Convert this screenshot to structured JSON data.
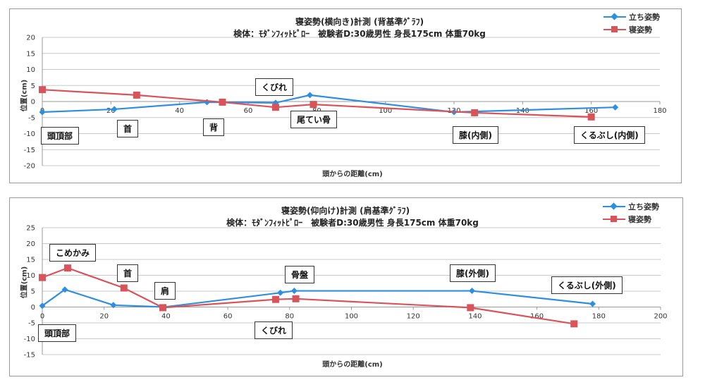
{
  "chart_data": [
    {
      "type": "line",
      "title": "寝姿勢(横向き)計測 (背基準ｸﾞﾗﾌ)",
      "subtitle": "検体：ﾓﾀﾞﾝﾌｨｯﾄﾋﾟﾛｰ　被験者D:30歳男性 身長175cm 体重70kg",
      "xlabel": "頭からの距離(cm)",
      "ylabel": "位置(cm)",
      "xlim": [
        0,
        180
      ],
      "ylim": [
        -20,
        20
      ],
      "xticks": [
        0,
        20,
        40,
        60,
        80,
        100,
        120,
        140,
        160,
        180
      ],
      "yticks": [
        20,
        15,
        10,
        5,
        0,
        -5,
        -10,
        -15,
        -20
      ],
      "grid": true,
      "legend_position": "top-right",
      "series": [
        {
          "name": "立ち姿勢",
          "color": "#2e8fde",
          "marker": "diamond",
          "x": [
            0,
            21,
            48,
            68,
            78,
            120,
            167
          ],
          "y": [
            -3.3,
            -2.4,
            -0.2,
            -0.4,
            2.0,
            -3.3,
            -1.8
          ]
        },
        {
          "name": "寝姿勢",
          "color": "#d9545a",
          "marker": "square",
          "x": [
            0,
            27.5,
            52.5,
            68,
            79,
            126,
            160
          ],
          "y": [
            3.7,
            2.0,
            -0.2,
            -1.8,
            -0.9,
            -3.5,
            -4.8
          ]
        }
      ],
      "annotations": [
        {
          "label": "頭頂部",
          "x": 0,
          "y": -10
        },
        {
          "label": "首",
          "x": 26,
          "y": -8
        },
        {
          "label": "背",
          "x": 50,
          "y": -8
        },
        {
          "label": "くびれ",
          "x": 67,
          "y": 5
        },
        {
          "label": "尾てい骨",
          "x": 82,
          "y": -6
        },
        {
          "label": "膝(内側)",
          "x": 126,
          "y": -10
        },
        {
          "label": "くるぶし(内側)",
          "x": 164,
          "y": -10
        }
      ]
    },
    {
      "type": "line",
      "title": "寝姿勢(仰向け)計測 (肩基準ｸﾞﾗﾌ)",
      "subtitle": "検体：ﾓﾀﾞﾝﾌｨｯﾄﾋﾟﾛｰ　被験者D:30歳男性 身長175cm 体重70kg",
      "xlabel": "頭からの距離(cm)",
      "ylabel": "位置(cm)",
      "xlim": [
        0,
        200
      ],
      "ylim": [
        -15,
        25
      ],
      "xticks": [
        0,
        20,
        40,
        60,
        80,
        100,
        120,
        140,
        160,
        180,
        200
      ],
      "yticks": [
        25,
        20,
        15,
        10,
        5,
        0,
        -5,
        -10,
        -15
      ],
      "grid": true,
      "legend_position": "top-right",
      "series": [
        {
          "name": "立ち姿勢",
          "color": "#2e8fde",
          "marker": "diamond",
          "x": [
            0,
            7.3,
            23,
            39.5,
            77,
            81.5,
            139,
            178
          ],
          "y": [
            0.4,
            5.5,
            0.6,
            0.0,
            4.5,
            5.1,
            5.1,
            1.0
          ]
        },
        {
          "name": "寝姿勢",
          "color": "#d9545a",
          "marker": "square",
          "x": [
            0,
            8.2,
            26.4,
            39,
            75.5,
            82,
            138.5,
            172
          ],
          "y": [
            9.3,
            12.3,
            6.0,
            -0.2,
            2.4,
            2.6,
            -0.2,
            -5.3
          ]
        }
      ],
      "annotations": [
        {
          "label": "こめかみ",
          "x": 9,
          "y": 17
        },
        {
          "label": "首",
          "x": 27,
          "y": 11
        },
        {
          "label": "肩",
          "x": 40,
          "y": 5
        },
        {
          "label": "頭頂部",
          "x": 0,
          "y": -8
        },
        {
          "label": "骨盤",
          "x": 82,
          "y": 10
        },
        {
          "label": "くびれ",
          "x": 77,
          "y": -7
        },
        {
          "label": "膝(外側)",
          "x": 138,
          "y": 10
        },
        {
          "label": "くるぶし(外側)",
          "x": 179,
          "y": 7
        }
      ]
    }
  ],
  "charts": {
    "top": {
      "title": "寝姿勢(横向き)計測 (背基準ｸﾞﾗﾌ)",
      "subtitle": "検体：ﾓﾀﾞﾝﾌｨｯﾄﾋﾟﾛｰ　被験者D:30歳男性 身長175cm 体重70kg",
      "xlabel": "頭からの距離(cm)",
      "ylabel": "位置(cm)",
      "legend": [
        "立ち姿勢",
        "寝姿勢"
      ],
      "annotations": [
        "頭頂部",
        "首",
        "背",
        "くびれ",
        "尾てい骨",
        "膝(内側)",
        "くるぶし(内側)"
      ]
    },
    "bottom": {
      "title": "寝姿勢(仰向け)計測 (肩基準ｸﾞﾗﾌ)",
      "subtitle": "検体：ﾓﾀﾞﾝﾌｨｯﾄﾋﾟﾛｰ　被験者D:30歳男性 身長175cm 体重70kg",
      "xlabel": "頭からの距離(cm)",
      "ylabel": "位置(cm)",
      "legend": [
        "立ち姿勢",
        "寝姿勢"
      ],
      "annotations": [
        "こめかみ",
        "首",
        "肩",
        "頭頂部",
        "骨盤",
        "くびれ",
        "膝(外側)",
        "くるぶし(外側)"
      ]
    }
  },
  "colors": {
    "standing": "#2e8fde",
    "lying": "#d9545a",
    "grid": "#c8c8c8",
    "axis": "#999999"
  }
}
